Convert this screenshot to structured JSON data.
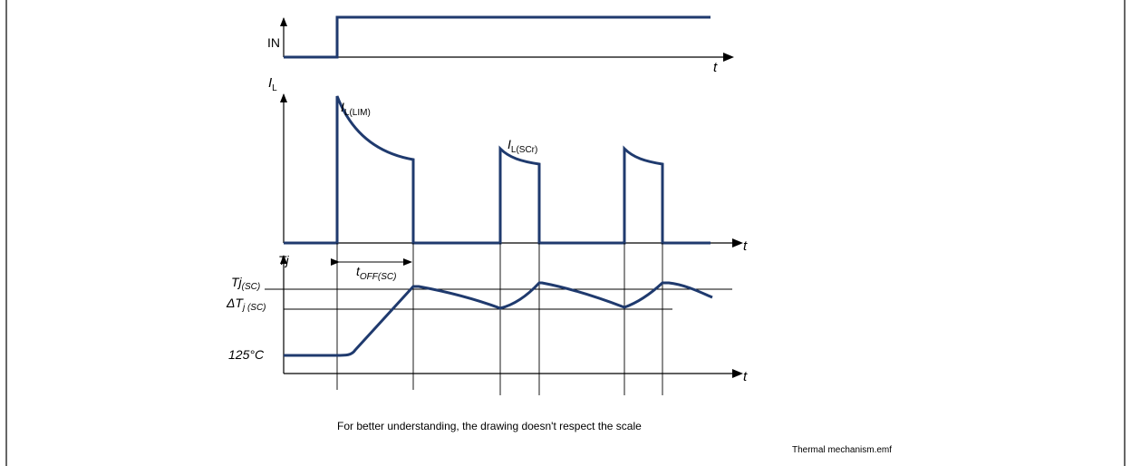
{
  "labels": {
    "in": "IN",
    "t_top": "t",
    "il_main": "I",
    "il_sub": "L",
    "t_mid": "t",
    "illim_main": "I",
    "illim_sub": "L(LIM)",
    "ilsc_main": "I",
    "ilsc_sub": "L(SCr)",
    "tj": "Tj",
    "toff_main": "t",
    "toff_sub": "OFF(SC)",
    "tjsc_main": "Tj",
    "tjsc_sub": "(SC)",
    "dtj_main": "ΔT",
    "dtj_sub": "j (SC)",
    "t125": "125°C",
    "t_bot": "t"
  },
  "caption": "For better understanding, the drawing doesn't respect the scale",
  "filename": "Thermal mechanism.emf",
  "colors": {
    "waveform": "#1f3a6e",
    "axis": "#000000"
  }
}
